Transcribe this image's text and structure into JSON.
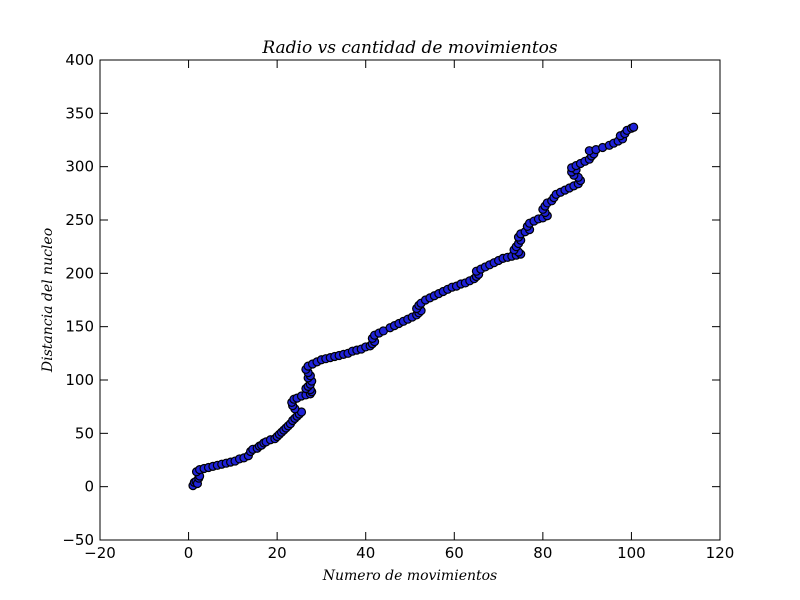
{
  "chart_data": {
    "type": "scatter",
    "title": "Radio vs cantidad de movimientos",
    "xlabel": "Numero de movimientos",
    "ylabel": "Distancia del nucleo",
    "xlim": [
      -20,
      120
    ],
    "ylim": [
      -50,
      400
    ],
    "xticks": [
      "−20",
      "0",
      "20",
      "40",
      "60",
      "80",
      "100",
      "120"
    ],
    "yticks": [
      "−50",
      "0",
      "50",
      "100",
      "150",
      "200",
      "250",
      "300",
      "350",
      "400"
    ],
    "marker_fill": "#1f22d8",
    "marker_edge": "#000000",
    "grid": false,
    "series": [
      {
        "points": [
          [
            1.0,
            1
          ],
          [
            1.3,
            4
          ],
          [
            1.7,
            5
          ],
          [
            2.0,
            3
          ],
          [
            2.3,
            8
          ],
          [
            2.5,
            10
          ],
          [
            1.8,
            14
          ],
          [
            2.5,
            16
          ],
          [
            3.5,
            17
          ],
          [
            4.5,
            18
          ],
          [
            5.5,
            19
          ],
          [
            6.5,
            20
          ],
          [
            7.5,
            21
          ],
          [
            8.5,
            22
          ],
          [
            9.5,
            23
          ],
          [
            10.5,
            24
          ],
          [
            11.5,
            26
          ],
          [
            12.5,
            27
          ],
          [
            13.5,
            29
          ],
          [
            14.0,
            33
          ],
          [
            14.5,
            35
          ],
          [
            15.5,
            36
          ],
          [
            16.0,
            38
          ],
          [
            16.5,
            39
          ],
          [
            17.0,
            41
          ],
          [
            17.5,
            42
          ],
          [
            18.5,
            44
          ],
          [
            19.5,
            45
          ],
          [
            20.0,
            47
          ],
          [
            20.5,
            49
          ],
          [
            21.0,
            51
          ],
          [
            21.5,
            53
          ],
          [
            22.0,
            55
          ],
          [
            22.5,
            57
          ],
          [
            23.0,
            59
          ],
          [
            23.5,
            62
          ],
          [
            24.0,
            64
          ],
          [
            24.5,
            66
          ],
          [
            25.0,
            68
          ],
          [
            25.5,
            70
          ],
          [
            24.0,
            73
          ],
          [
            23.5,
            76
          ],
          [
            23.3,
            79
          ],
          [
            23.8,
            82
          ],
          [
            24.5,
            83
          ],
          [
            25.5,
            85
          ],
          [
            26.5,
            86
          ],
          [
            27.5,
            87
          ],
          [
            27.8,
            89
          ],
          [
            27.5,
            91
          ],
          [
            26.5,
            92
          ],
          [
            27.0,
            94
          ],
          [
            27.5,
            96
          ],
          [
            27.8,
            99
          ],
          [
            27.0,
            102
          ],
          [
            27.5,
            104
          ],
          [
            27.0,
            107
          ],
          [
            26.5,
            110
          ],
          [
            27.0,
            113
          ],
          [
            28.0,
            115
          ],
          [
            29.0,
            117
          ],
          [
            30.0,
            119
          ],
          [
            31.0,
            120
          ],
          [
            32.0,
            121
          ],
          [
            33.0,
            122
          ],
          [
            34.0,
            123
          ],
          [
            35.0,
            124
          ],
          [
            36.0,
            125
          ],
          [
            37.0,
            127
          ],
          [
            38.0,
            128
          ],
          [
            39.0,
            129
          ],
          [
            40.0,
            131
          ],
          [
            41.0,
            132
          ],
          [
            41.5,
            134
          ],
          [
            42.0,
            136
          ],
          [
            41.5,
            139
          ],
          [
            42.0,
            142
          ],
          [
            43.0,
            144
          ],
          [
            44.0,
            146
          ],
          [
            45.5,
            149
          ],
          [
            46.5,
            151
          ],
          [
            47.5,
            153
          ],
          [
            48.5,
            155
          ],
          [
            49.5,
            157
          ],
          [
            50.5,
            159
          ],
          [
            51.5,
            161
          ],
          [
            52.0,
            163
          ],
          [
            52.5,
            165
          ],
          [
            51.5,
            167
          ],
          [
            52.0,
            170
          ],
          [
            52.5,
            172
          ],
          [
            53.5,
            175
          ],
          [
            54.5,
            177
          ],
          [
            55.5,
            179
          ],
          [
            56.5,
            181
          ],
          [
            57.5,
            183
          ],
          [
            58.5,
            185
          ],
          [
            59.5,
            187
          ],
          [
            60.5,
            188
          ],
          [
            61.5,
            190
          ],
          [
            62.5,
            191
          ],
          [
            63.5,
            193
          ],
          [
            64.5,
            195
          ],
          [
            65.0,
            197
          ],
          [
            65.5,
            199
          ],
          [
            65.0,
            202
          ],
          [
            66.0,
            204
          ],
          [
            67.0,
            206
          ],
          [
            68.0,
            208
          ],
          [
            69.0,
            210
          ],
          [
            70.0,
            212
          ],
          [
            71.0,
            214
          ],
          [
            72.0,
            215
          ],
          [
            73.0,
            216
          ],
          [
            74.0,
            217
          ],
          [
            75.0,
            218
          ],
          [
            74.5,
            220
          ],
          [
            73.5,
            222
          ],
          [
            74.0,
            225
          ],
          [
            74.5,
            228
          ],
          [
            75.0,
            231
          ],
          [
            74.5,
            234
          ],
          [
            75.0,
            237
          ],
          [
            76.0,
            239
          ],
          [
            77.0,
            241
          ],
          [
            76.5,
            244
          ],
          [
            77.0,
            247
          ],
          [
            78.0,
            249
          ],
          [
            79.0,
            251
          ],
          [
            80.0,
            252
          ],
          [
            81.0,
            254
          ],
          [
            80.5,
            257
          ],
          [
            80.0,
            260
          ],
          [
            80.5,
            263
          ],
          [
            81.0,
            266
          ],
          [
            82.0,
            268
          ],
          [
            82.5,
            271
          ],
          [
            83.0,
            274
          ],
          [
            84.0,
            276
          ],
          [
            85.0,
            278
          ],
          [
            86.0,
            280
          ],
          [
            87.0,
            282
          ],
          [
            88.0,
            284
          ],
          [
            88.5,
            287
          ],
          [
            88.0,
            290
          ],
          [
            87.0,
            292
          ],
          [
            86.5,
            295
          ],
          [
            87.5,
            297
          ],
          [
            86.5,
            299
          ],
          [
            87.5,
            301
          ],
          [
            88.5,
            303
          ],
          [
            89.5,
            305
          ],
          [
            90.5,
            307
          ],
          [
            91.0,
            310
          ],
          [
            91.5,
            312
          ],
          [
            90.5,
            315
          ],
          [
            92.0,
            316
          ],
          [
            93.5,
            318
          ],
          [
            95.0,
            320
          ],
          [
            96.0,
            322
          ],
          [
            97.0,
            324
          ],
          [
            98.0,
            326
          ],
          [
            97.5,
            329
          ],
          [
            98.5,
            331
          ],
          [
            99.0,
            334
          ],
          [
            100.0,
            336
          ],
          [
            100.5,
            337
          ]
        ]
      }
    ]
  }
}
